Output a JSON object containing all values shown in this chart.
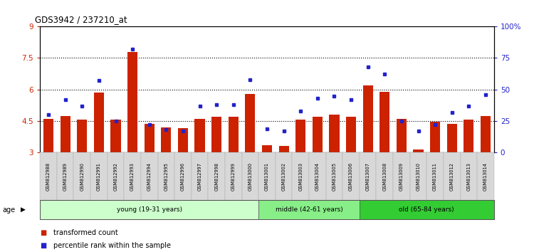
{
  "title": "GDS3942 / 237210_at",
  "samples": [
    "GSM812988",
    "GSM812989",
    "GSM812990",
    "GSM812991",
    "GSM812992",
    "GSM812993",
    "GSM812994",
    "GSM812995",
    "GSM812996",
    "GSM812997",
    "GSM812998",
    "GSM812999",
    "GSM813000",
    "GSM813001",
    "GSM813002",
    "GSM813003",
    "GSM813004",
    "GSM813005",
    "GSM813006",
    "GSM813007",
    "GSM813008",
    "GSM813009",
    "GSM813010",
    "GSM813011",
    "GSM813012",
    "GSM813013",
    "GSM813014"
  ],
  "bar_values": [
    4.6,
    4.75,
    4.55,
    5.85,
    4.55,
    7.8,
    4.35,
    4.2,
    4.15,
    4.6,
    4.7,
    4.7,
    5.8,
    3.35,
    3.3,
    4.55,
    4.7,
    4.8,
    4.7,
    6.2,
    5.9,
    4.6,
    3.15,
    4.45,
    4.35,
    4.55,
    4.75
  ],
  "dot_values": [
    30,
    42,
    37,
    57,
    25,
    82,
    22,
    18,
    17,
    37,
    38,
    38,
    58,
    19,
    17,
    33,
    43,
    45,
    42,
    68,
    62,
    25,
    17,
    22,
    32,
    37,
    46
  ],
  "ylim": [
    3,
    9
  ],
  "y2lim": [
    0,
    100
  ],
  "yticks": [
    3,
    4.5,
    6,
    7.5,
    9
  ],
  "ytick_labels": [
    "3",
    "4.5",
    "6",
    "7.5",
    "9"
  ],
  "y2ticks": [
    0,
    25,
    50,
    75,
    100
  ],
  "y2tick_labels": [
    "0",
    "25",
    "50",
    "75",
    "100%"
  ],
  "bar_color": "#cc2200",
  "dot_color": "#2222cc",
  "grid_color": "#000000",
  "spine_color": "#000000",
  "xtick_bg": "#dddddd",
  "groups": [
    {
      "label": "young (19-31 years)",
      "start": 0,
      "end": 13,
      "color": "#ccffcc"
    },
    {
      "label": "middle (42-61 years)",
      "start": 13,
      "end": 19,
      "color": "#88ee88"
    },
    {
      "label": "old (65-84 years)",
      "start": 19,
      "end": 27,
      "color": "#33cc33"
    }
  ],
  "legend_items": [
    {
      "color": "#cc2200",
      "label": "transformed count"
    },
    {
      "color": "#2222cc",
      "label": "percentile rank within the sample"
    }
  ],
  "background_color": "#ffffff"
}
